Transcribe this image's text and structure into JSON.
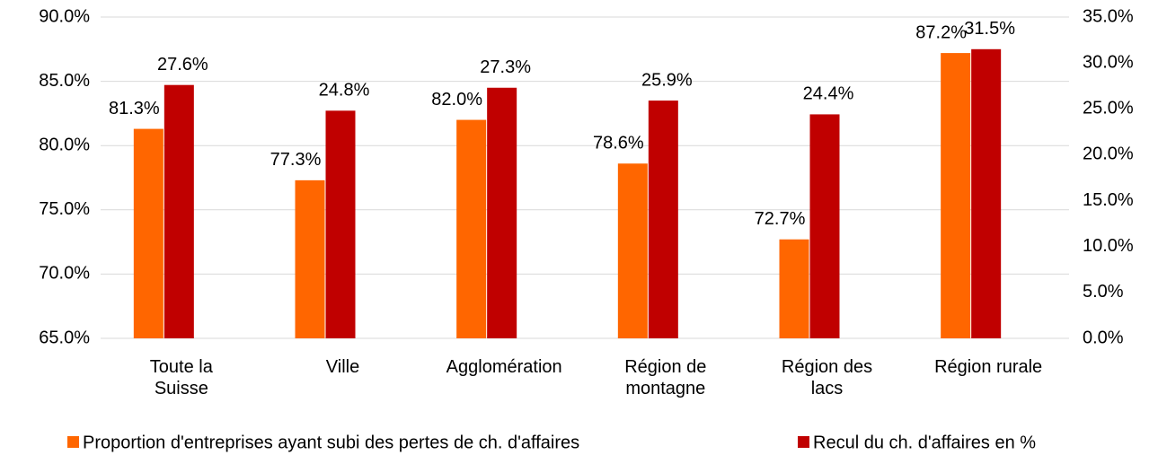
{
  "chart_data": {
    "type": "bar",
    "categories": [
      "Toute la Suisse",
      "Ville",
      "Agglomération",
      "Région de montagne",
      "Région des lacs",
      "Région rurale"
    ],
    "series": [
      {
        "name": "Proportion d'entreprises ayant subi des pertes de ch. d'affaires",
        "color": "#ff6600",
        "values": [
          81.3,
          77.3,
          82.0,
          78.6,
          72.7,
          87.2
        ],
        "value_labels": [
          "81.3%",
          "77.3%",
          "82.0%",
          "78.6%",
          "72.7%",
          "87.2%"
        ]
      },
      {
        "name": "Recul du ch. d'affaires en %",
        "color": "#c00000",
        "axis": "y2",
        "values": [
          27.6,
          24.8,
          27.3,
          25.9,
          24.4,
          31.5
        ],
        "value_labels": [
          "27.6%",
          "24.8%",
          "27.3%",
          "25.9%",
          "24.4%",
          "31.5%"
        ]
      }
    ],
    "ylim": [
      65,
      90
    ],
    "yticks": [
      {
        "value": 65,
        "label": "65.0%"
      },
      {
        "value": 70,
        "label": "70.0%"
      },
      {
        "value": 75,
        "label": "75.0%"
      },
      {
        "value": 80,
        "label": "80.0%"
      },
      {
        "value": 85,
        "label": "85.0%"
      },
      {
        "value": 90,
        "label": "90.0%"
      }
    ],
    "y2lim": [
      0,
      35
    ],
    "y2ticks": [
      {
        "value": 0,
        "label": "0.0%"
      },
      {
        "value": 5,
        "label": "5.0%"
      },
      {
        "value": 10,
        "label": "10.0%"
      },
      {
        "value": 15,
        "label": "15.0%"
      },
      {
        "value": 20,
        "label": "20.0%"
      },
      {
        "value": 25,
        "label": "25.0%"
      },
      {
        "value": 30,
        "label": "30.0%"
      },
      {
        "value": 35,
        "label": "35.0%"
      }
    ],
    "grid": true,
    "legend": "bottom"
  }
}
